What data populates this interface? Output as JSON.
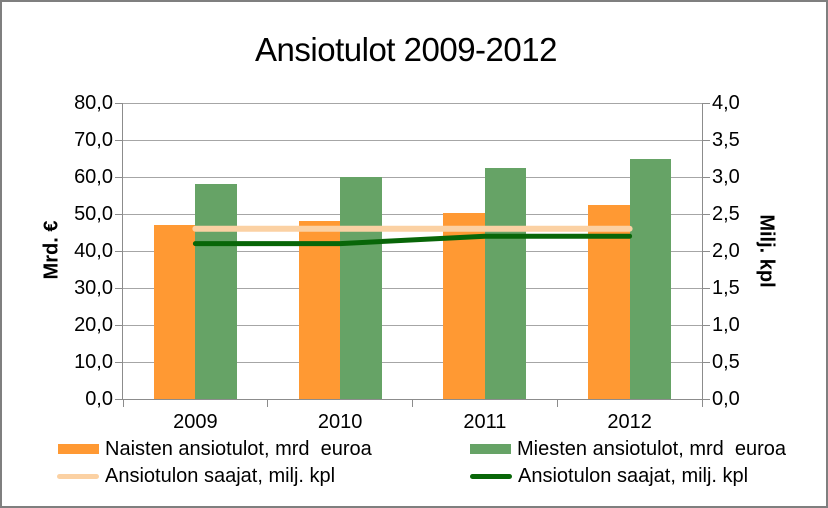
{
  "title": "Ansiotulot 2009-2012",
  "axes": {
    "left_title": "Mrd. €",
    "right_title": "Milj. kpl",
    "left_ticks": [
      "80,0",
      "70,0",
      "60,0",
      "50,0",
      "40,0",
      "30,0",
      "20,0",
      "10,0",
      "0,0"
    ],
    "right_ticks": [
      "4,0",
      "3,5",
      "3,0",
      "2,5",
      "2,0",
      "1,5",
      "1,0",
      "0,5",
      "0,0"
    ]
  },
  "legend": {
    "items": [
      {
        "label": "Naisten ansiotulot, mrd  euroa",
        "swatch": "rect",
        "color": "#FF9933"
      },
      {
        "label": "Miesten ansiotulot, mrd  euroa",
        "swatch": "rect",
        "color": "#66A366"
      },
      {
        "label": "Ansiotulon saajat, milj. kpl",
        "swatch": "line",
        "color": "#FBD1A3"
      },
      {
        "label": "Ansiotulon saajat, milj. kpl",
        "swatch": "line",
        "color": "#086608"
      }
    ]
  },
  "colors": {
    "naisten_bar": "#FF9933",
    "miesten_bar": "#66A366",
    "saajat_line_light": "#FBD1A3",
    "saajat_line_dark": "#086608",
    "gridline": "#A6A6A6",
    "axis": "#8C8C8C"
  },
  "chart_data": {
    "type": "bar",
    "title": "Ansiotulot 2009-2012",
    "categories": [
      "2009",
      "2010",
      "2011",
      "2012"
    ],
    "series": [
      {
        "name": "Naisten ansiotulot, mrd  euroa",
        "type": "bar",
        "axis": "left",
        "color": "#FF9933",
        "values": [
          47.0,
          48.2,
          50.3,
          52.5
        ]
      },
      {
        "name": "Miesten ansiotulot, mrd  euroa",
        "type": "bar",
        "axis": "left",
        "color": "#66A366",
        "values": [
          58.0,
          60.0,
          62.5,
          65.0
        ]
      },
      {
        "name": "Ansiotulon saajat, milj. kpl",
        "type": "line",
        "axis": "right",
        "color": "#FBD1A3",
        "values": [
          2.3,
          2.3,
          2.3,
          2.3
        ]
      },
      {
        "name": "Ansiotulon saajat, milj. kpl",
        "type": "line",
        "axis": "right",
        "color": "#086608",
        "values": [
          2.1,
          2.1,
          2.2,
          2.2
        ]
      }
    ],
    "ylabel_left": "Mrd. €",
    "ylabel_right": "Milj. kpl",
    "ylim_left": [
      0,
      80
    ],
    "ylim_right": [
      0,
      4
    ],
    "y_step_left": 10,
    "y_step_right": 0.5,
    "grid": true,
    "legend_position": "bottom"
  }
}
